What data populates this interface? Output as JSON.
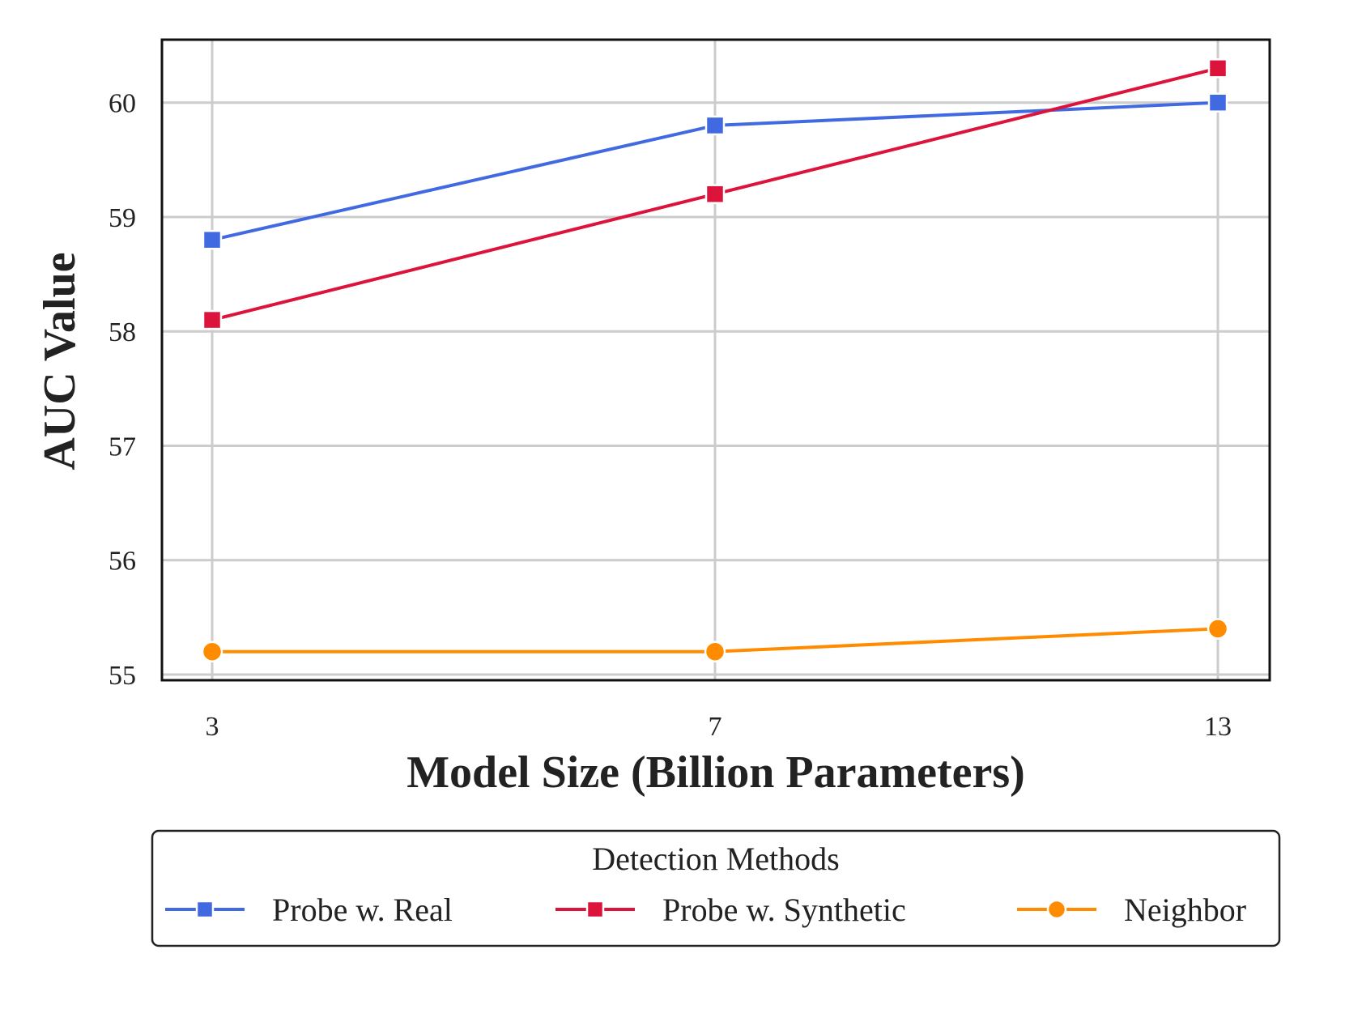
{
  "chart_data": {
    "type": "line",
    "title": "",
    "xlabel": "Model Size (Billion Parameters)",
    "ylabel": "AUC Value",
    "x": [
      3,
      7,
      13
    ],
    "x_tick_labels": [
      "3",
      "7",
      "13"
    ],
    "y_ticks": [
      55,
      56,
      57,
      58,
      59,
      60
    ],
    "y_tick_labels": [
      "55",
      "56",
      "57",
      "58",
      "59",
      "60"
    ],
    "ylim": [
      54.95,
      60.55
    ],
    "grid": true,
    "legend": {
      "title": "Detection Methods",
      "placement": "bottom"
    },
    "series": [
      {
        "name": "Probe w. Real",
        "values": [
          58.8,
          59.8,
          60.0
        ],
        "color": "#4169e1",
        "marker": "square"
      },
      {
        "name": "Probe w. Synthetic",
        "values": [
          58.1,
          59.2,
          60.3
        ],
        "color": "#dc143c",
        "marker": "square"
      },
      {
        "name": "Neighbor",
        "values": [
          55.2,
          55.2,
          55.4
        ],
        "color": "#ff8c00",
        "marker": "circle"
      }
    ]
  }
}
